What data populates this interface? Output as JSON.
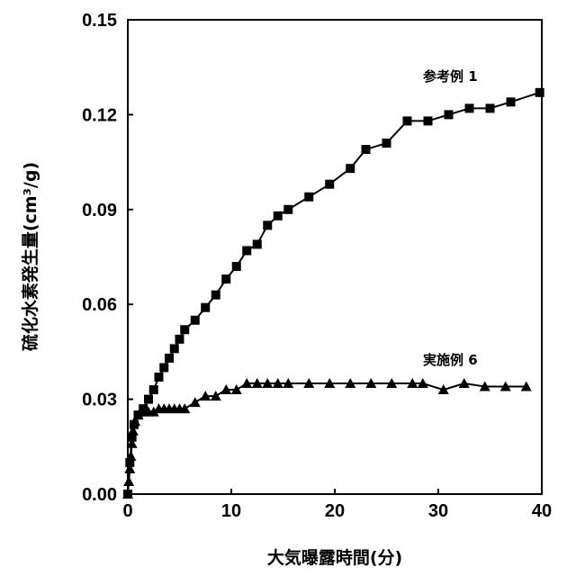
{
  "chart_data": {
    "type": "line",
    "title": "",
    "xlabel": "大気曝露時間(分)",
    "ylabel": "硫化水素発生量(cm³/g)",
    "xlim": [
      0,
      40
    ],
    "ylim": [
      0,
      0.15
    ],
    "xticks": [
      "0",
      "10",
      "20",
      "30",
      "40"
    ],
    "yticks": [
      "0.00",
      "0.03",
      "0.06",
      "0.09",
      "0.12",
      "0.15"
    ],
    "grid": false,
    "series": [
      {
        "name": "参考例 1",
        "marker": "square",
        "x": [
          0,
          0.2,
          0.4,
          0.6,
          1,
          1.5,
          2,
          2.5,
          3,
          3.5,
          4,
          4.5,
          5,
          5.5,
          6.5,
          7.5,
          8.5,
          9.5,
          10.5,
          11.5,
          12.5,
          13.5,
          14.5,
          15.5,
          17.5,
          19.5,
          21.5,
          23,
          25,
          27,
          29,
          31,
          33,
          35,
          37,
          39.8
        ],
        "y": [
          0,
          0.01,
          0.018,
          0.022,
          0.025,
          0.027,
          0.03,
          0.033,
          0.037,
          0.04,
          0.043,
          0.046,
          0.049,
          0.052,
          0.055,
          0.059,
          0.063,
          0.068,
          0.072,
          0.077,
          0.079,
          0.085,
          0.088,
          0.09,
          0.094,
          0.098,
          0.103,
          0.109,
          0.111,
          0.118,
          0.118,
          0.12,
          0.122,
          0.122,
          0.124,
          0.127
        ]
      },
      {
        "name": "実施例 6",
        "marker": "triangle",
        "x": [
          0,
          0.1,
          0.2,
          0.3,
          0.4,
          0.5,
          0.7,
          1,
          1.5,
          2,
          2.5,
          3,
          3.5,
          4,
          4.5,
          5,
          5.5,
          6.5,
          7.5,
          8.5,
          9.5,
          10.5,
          11.5,
          12.5,
          13.5,
          14.5,
          15.5,
          17.5,
          19.5,
          21.5,
          23.5,
          25.5,
          27.5,
          28.5,
          30.5,
          32.5,
          34.5,
          36.5,
          38.5
        ],
        "y": [
          0,
          0.004,
          0.008,
          0.012,
          0.016,
          0.02,
          0.023,
          0.025,
          0.026,
          0.026,
          0.026,
          0.027,
          0.027,
          0.027,
          0.027,
          0.027,
          0.027,
          0.029,
          0.031,
          0.031,
          0.033,
          0.033,
          0.035,
          0.035,
          0.035,
          0.035,
          0.035,
          0.035,
          0.035,
          0.035,
          0.035,
          0.035,
          0.035,
          0.035,
          0.033,
          0.035,
          0.034,
          0.034,
          0.034
        ]
      }
    ],
    "annotations": [
      "参考例 1",
      "実施例 6"
    ]
  }
}
